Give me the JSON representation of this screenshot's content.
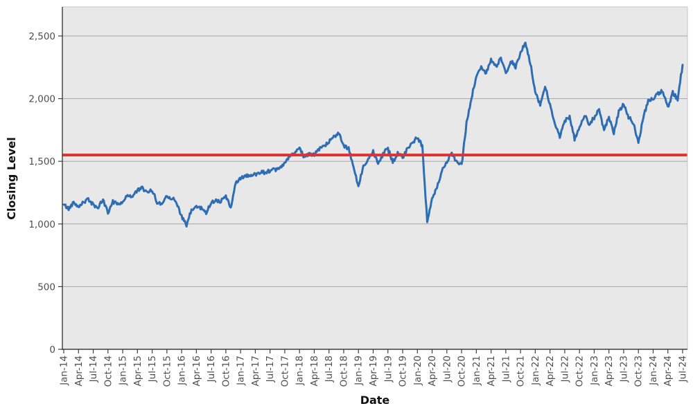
{
  "chart_data": {
    "type": "line",
    "title": "",
    "xlabel": "Date",
    "ylabel": "Closing Level",
    "grid": "horizontal",
    "legend": "none",
    "plot_bg_color": "#E8E8E8",
    "outer_bg_color": "#FFFFFF",
    "grid_color": "#A6A6A6",
    "spine_color": "#3D3D3D",
    "tick_text_color": "#4D4D4D",
    "y_tick_labels": [
      "0",
      "500",
      "1,000",
      "1,500",
      "2,000",
      "2,500"
    ],
    "y_tick_values": [
      0,
      500,
      1000,
      1500,
      2000,
      2500
    ],
    "ylim": [
      0,
      2730
    ],
    "x_tick_labels": [
      "Jan-14",
      "Apr-14",
      "Jul-14",
      "Oct-14",
      "Jan-15",
      "Apr-15",
      "Jul-15",
      "Oct-15",
      "Jan-16",
      "Apr-16",
      "Jul-16",
      "Oct-16",
      "Jan-17",
      "Apr-17",
      "Jul-17",
      "Oct-17",
      "Jan-18",
      "Apr-18",
      "Jul-18",
      "Oct-18",
      "Jan-19",
      "Apr-19",
      "Jul-19",
      "Oct-19",
      "Jan-20",
      "Apr-20",
      "Jul-20",
      "Oct-20",
      "Jan-21",
      "Apr-21",
      "Jul-21",
      "Oct-21",
      "Jan-22",
      "Apr-22",
      "Jul-22",
      "Oct-22",
      "Jan-23",
      "Apr-23",
      "Jul-23",
      "Oct-23",
      "Jan-24",
      "Apr-24",
      "Jul-24"
    ],
    "x_range": {
      "start": "Jan-2014",
      "end": "Jul-2024",
      "frequency": "monthly estimates of a daily closing-level series"
    },
    "series": [
      {
        "name": "Closing Level",
        "color": "#2E6DB4",
        "stroke_width": 3,
        "values": [
          1155,
          1120,
          1175,
          1140,
          1175,
          1195,
          1155,
          1130,
          1190,
          1090,
          1180,
          1160,
          1175,
          1230,
          1220,
          1270,
          1285,
          1245,
          1270,
          1170,
          1160,
          1230,
          1205,
          1170,
          1060,
          985,
          1110,
          1140,
          1125,
          1090,
          1170,
          1190,
          1180,
          1220,
          1130,
          1320,
          1365,
          1390,
          1380,
          1395,
          1420,
          1410,
          1430,
          1425,
          1450,
          1485,
          1540,
          1560,
          1605,
          1535,
          1565,
          1545,
          1595,
          1615,
          1655,
          1700,
          1730,
          1620,
          1600,
          1450,
          1300,
          1460,
          1520,
          1580,
          1490,
          1560,
          1600,
          1500,
          1560,
          1530,
          1610,
          1650,
          1690,
          1620,
          1020,
          1200,
          1290,
          1420,
          1500,
          1560,
          1490,
          1470,
          1800,
          2000,
          2180,
          2250,
          2200,
          2310,
          2250,
          2320,
          2200,
          2300,
          2250,
          2360,
          2450,
          2280,
          2050,
          1950,
          2100,
          1950,
          1800,
          1700,
          1820,
          1850,
          1680,
          1760,
          1870,
          1800,
          1850,
          1920,
          1750,
          1850,
          1720,
          1900,
          1950,
          1850,
          1800,
          1650,
          1850,
          1980,
          2000,
          2040,
          2060,
          1930,
          2050,
          2000,
          2270
        ]
      }
    ],
    "reference_line": {
      "value": 1550,
      "color": "#E03131",
      "stroke_width": 4
    }
  }
}
